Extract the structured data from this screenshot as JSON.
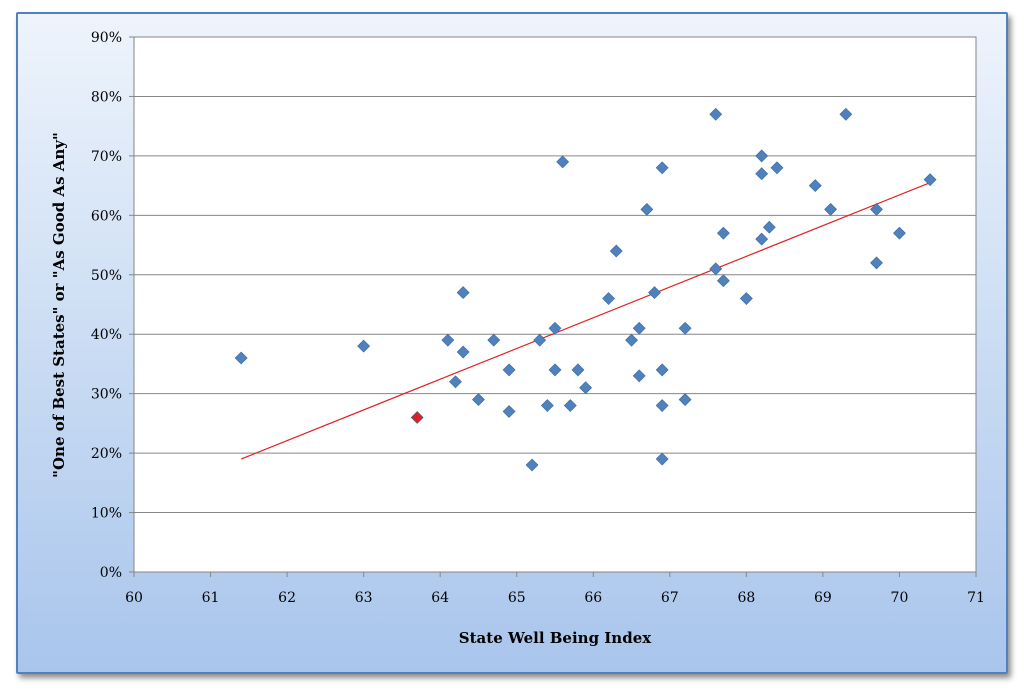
{
  "chart_data": {
    "type": "scatter",
    "title": "",
    "xlabel": "State Well Being Index",
    "ylabel": "\"One of Best States\" or \"As Good As Any\"",
    "xlim": [
      60,
      71
    ],
    "ylim": [
      0,
      90
    ],
    "x_ticks": [
      "60",
      "61",
      "62",
      "63",
      "64",
      "65",
      "66",
      "67",
      "68",
      "69",
      "70",
      "71"
    ],
    "y_ticks": [
      "0%",
      "10%",
      "20%",
      "30%",
      "40%",
      "50%",
      "60%",
      "70%",
      "80%",
      "90%"
    ],
    "grid": "horizontal",
    "marker_color": "#4f81bd",
    "highlight_color": "#e02020",
    "trendline_color": "#e02020",
    "points": [
      {
        "x": 61.4,
        "y": 36
      },
      {
        "x": 63.0,
        "y": 38
      },
      {
        "x": 64.1,
        "y": 39
      },
      {
        "x": 64.2,
        "y": 32
      },
      {
        "x": 64.3,
        "y": 47
      },
      {
        "x": 64.3,
        "y": 37
      },
      {
        "x": 64.5,
        "y": 29
      },
      {
        "x": 64.7,
        "y": 39
      },
      {
        "x": 64.9,
        "y": 34
      },
      {
        "x": 64.9,
        "y": 27
      },
      {
        "x": 65.2,
        "y": 18
      },
      {
        "x": 65.3,
        "y": 39
      },
      {
        "x": 65.4,
        "y": 28
      },
      {
        "x": 65.5,
        "y": 41
      },
      {
        "x": 65.5,
        "y": 34
      },
      {
        "x": 65.6,
        "y": 69
      },
      {
        "x": 65.7,
        "y": 28
      },
      {
        "x": 65.8,
        "y": 34
      },
      {
        "x": 65.9,
        "y": 31
      },
      {
        "x": 66.2,
        "y": 46
      },
      {
        "x": 66.3,
        "y": 54
      },
      {
        "x": 66.5,
        "y": 39
      },
      {
        "x": 66.6,
        "y": 41
      },
      {
        "x": 66.6,
        "y": 33
      },
      {
        "x": 66.7,
        "y": 61
      },
      {
        "x": 66.8,
        "y": 47
      },
      {
        "x": 66.9,
        "y": 68
      },
      {
        "x": 66.9,
        "y": 34
      },
      {
        "x": 66.9,
        "y": 28
      },
      {
        "x": 66.9,
        "y": 19
      },
      {
        "x": 67.2,
        "y": 41
      },
      {
        "x": 67.2,
        "y": 29
      },
      {
        "x": 67.6,
        "y": 77
      },
      {
        "x": 67.6,
        "y": 51
      },
      {
        "x": 67.7,
        "y": 57
      },
      {
        "x": 67.7,
        "y": 49
      },
      {
        "x": 68.0,
        "y": 46
      },
      {
        "x": 68.2,
        "y": 70
      },
      {
        "x": 68.2,
        "y": 67
      },
      {
        "x": 68.2,
        "y": 56
      },
      {
        "x": 68.3,
        "y": 58
      },
      {
        "x": 68.4,
        "y": 68
      },
      {
        "x": 68.9,
        "y": 65
      },
      {
        "x": 69.1,
        "y": 61
      },
      {
        "x": 69.3,
        "y": 77
      },
      {
        "x": 69.7,
        "y": 61
      },
      {
        "x": 69.7,
        "y": 52
      },
      {
        "x": 70.0,
        "y": 57
      },
      {
        "x": 70.4,
        "y": 66
      }
    ],
    "highlight_points": [
      {
        "x": 63.7,
        "y": 26
      }
    ],
    "trendline": {
      "x": [
        61.4,
        70.4
      ],
      "y": [
        19,
        65.5
      ]
    }
  }
}
